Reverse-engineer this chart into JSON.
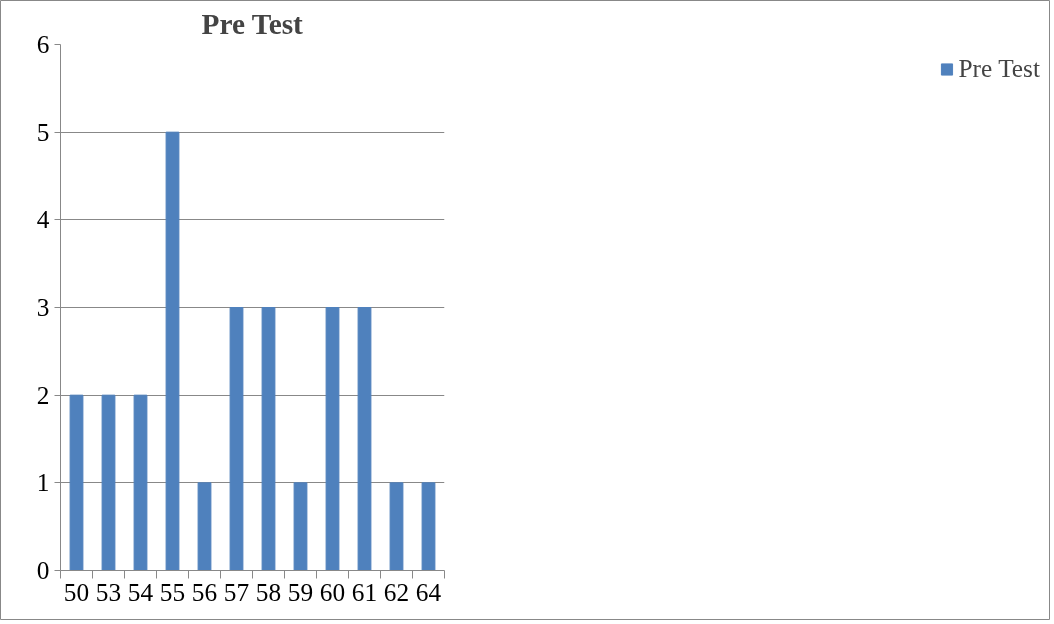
{
  "chart_data": {
    "type": "bar",
    "title": "Pre Test",
    "categories": [
      "50",
      "53",
      "54",
      "55",
      "56",
      "57",
      "58",
      "59",
      "60",
      "61",
      "62",
      "64"
    ],
    "series": [
      {
        "name": "Pre Test",
        "color": "#4f81bd",
        "values": [
          2,
          2,
          2,
          5,
          1,
          3,
          3,
          1,
          3,
          3,
          1,
          1
        ]
      }
    ],
    "ylim": [
      0,
      6
    ],
    "yticks": [
      0,
      1,
      2,
      3,
      4,
      5,
      6
    ],
    "grid": "y",
    "legend": "right"
  }
}
